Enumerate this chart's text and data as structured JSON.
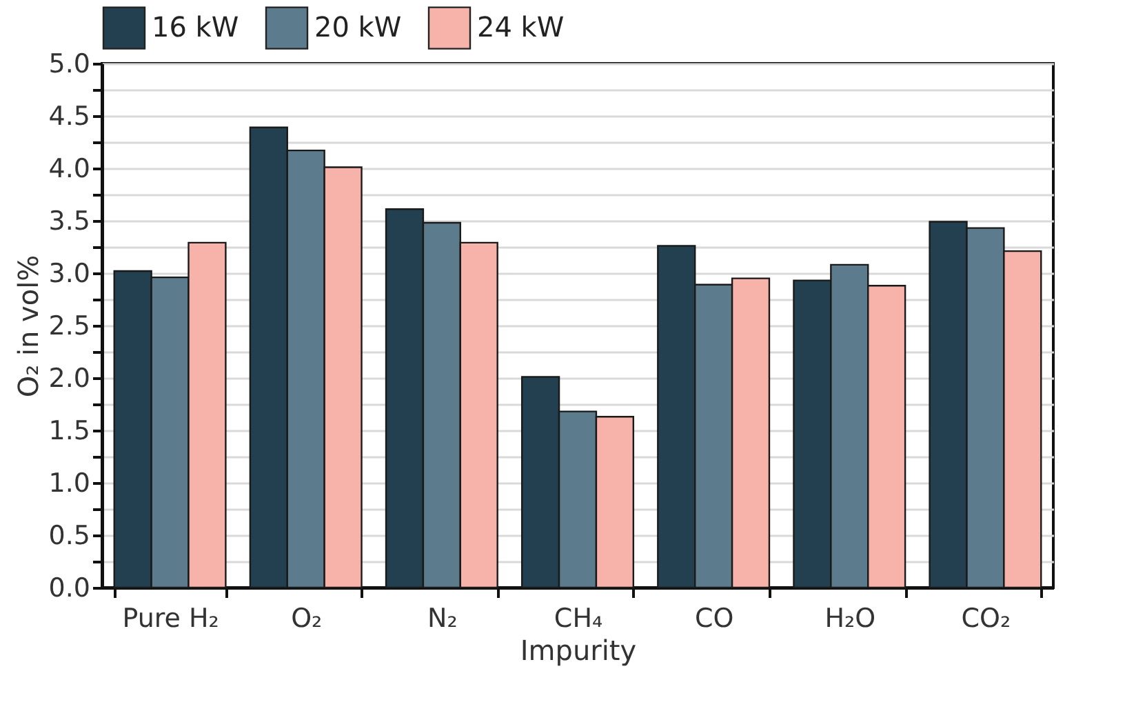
{
  "chart_data": {
    "type": "bar",
    "xlabel": "Impurity",
    "ylabel": "O₂ in vol%",
    "categories": [
      "Pure H₂",
      "O₂",
      "N₂",
      "CH₄",
      "CO",
      "H₂O",
      "CO₂"
    ],
    "series": [
      {
        "name": "16 kW",
        "color": "#22404f",
        "values": [
          3.02,
          4.39,
          3.61,
          2.01,
          3.26,
          2.93,
          3.49
        ]
      },
      {
        "name": "20 kW",
        "color": "#5c7b8c",
        "values": [
          2.96,
          4.17,
          3.48,
          1.68,
          2.89,
          3.08,
          3.43
        ]
      },
      {
        "name": "24 kW",
        "color": "#f7b2aa",
        "values": [
          3.29,
          4.01,
          3.29,
          1.63,
          2.95,
          2.88,
          3.21
        ]
      }
    ],
    "ylim": [
      0,
      5
    ],
    "yticks": [
      {
        "value": 0,
        "label": "0.0"
      },
      {
        "value": 0.25,
        "label": null
      },
      {
        "value": 0.5,
        "label": "0.5"
      },
      {
        "value": 0.75,
        "label": null
      },
      {
        "value": 1,
        "label": "1.0"
      },
      {
        "value": 1.25,
        "label": null
      },
      {
        "value": 1.5,
        "label": "1.5"
      },
      {
        "value": 1.75,
        "label": null
      },
      {
        "value": 2,
        "label": "2.0"
      },
      {
        "value": 2.25,
        "label": null
      },
      {
        "value": 2.5,
        "label": "2.5"
      },
      {
        "value": 2.75,
        "label": null
      },
      {
        "value": 3,
        "label": "3.0"
      },
      {
        "value": 3.25,
        "label": null
      },
      {
        "value": 3.5,
        "label": "3.5"
      },
      {
        "value": 3.75,
        "label": null
      },
      {
        "value": 4,
        "label": "4.0"
      },
      {
        "value": 4.25,
        "label": null
      },
      {
        "value": 4.5,
        "label": "4.5"
      },
      {
        "value": 4.75,
        "label": null
      },
      {
        "value": 5,
        "label": "5.0"
      }
    ],
    "grid": true,
    "legend": "top"
  }
}
